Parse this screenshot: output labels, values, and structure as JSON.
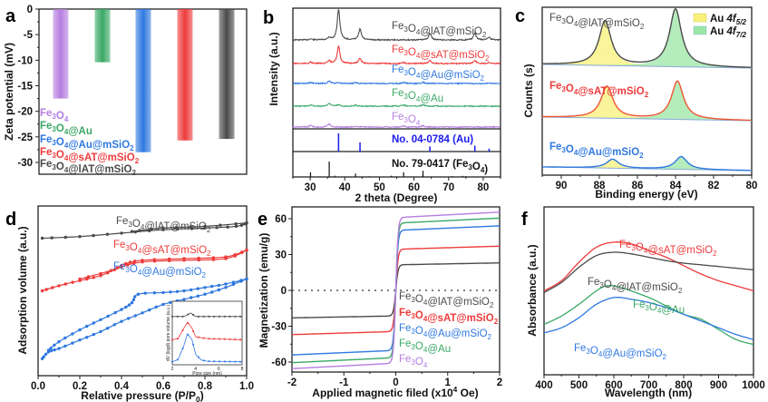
{
  "figure": {
    "panels": [
      "a",
      "b",
      "c",
      "d",
      "e",
      "f"
    ]
  },
  "colors": {
    "Fe3O4": "#b57ee0",
    "Fe3O4@Au": "#3aa866",
    "Fe3O4@Au@mSiO2": "#2f78e0",
    "Fe3O4@sAT@mSiO2": "#ee3b3b",
    "Fe3O4@lAT@mSiO2": "#4a4a4a",
    "au_ref": "#1a1aee",
    "fe_ref": "#111111",
    "au_4f52_fill": "#f8f07a",
    "au_4f72_fill": "#9be6a4"
  },
  "chart_data": [
    {
      "panel": "a",
      "type": "bar",
      "title": "",
      "xlabel": "",
      "ylabel": "Zeta potential (mV)",
      "ylim": [
        -32.5,
        0
      ],
      "yticks": [
        0,
        -5,
        -10,
        -15,
        -20,
        -25,
        -30
      ],
      "categories": [
        "Fe3O4",
        "Fe3O4@Au",
        "Fe3O4@Au@mSiO2",
        "Fe3O4@sAT@mSiO2",
        "Fe3O4@lAT@mSiO2"
      ],
      "values": [
        -17.5,
        -10.4,
        -28.0,
        -25.7,
        -25.4
      ],
      "legend": [
        "Fe₃O₄",
        "Fe₃O₄@Au",
        "Fe₃O₄@Au@mSiO₂",
        "Fe₃O₄@sAT@mSiO₂",
        "Fe₃O₄@lAT@mSiO₂"
      ],
      "legend_position": "bottom-left"
    },
    {
      "panel": "b",
      "type": "line",
      "xlabel": "2 theta (Degree)",
      "ylabel": "Intensity (a.u.)",
      "xlim": [
        25,
        85
      ],
      "xticks": [
        30,
        40,
        50,
        60,
        70,
        80
      ],
      "series": [
        {
          "name": "Fe₃O₄@lAT@mSiO₂",
          "peaks": [
            [
              30.1,
              0.03
            ],
            [
              35.5,
              0.08
            ],
            [
              38.2,
              1.0
            ],
            [
              44.4,
              0.35
            ],
            [
              64.6,
              0.22
            ],
            [
              77.6,
              0.22
            ],
            [
              81.7,
              0.09
            ]
          ]
        },
        {
          "name": "Fe₃O₄@sAT@mSiO₂",
          "peaks": [
            [
              30.1,
              0.06
            ],
            [
              35.5,
              0.12
            ],
            [
              38.2,
              0.8
            ],
            [
              44.4,
              0.25
            ],
            [
              57.0,
              0.04
            ],
            [
              64.6,
              0.14
            ],
            [
              77.6,
              0.14
            ],
            [
              81.7,
              0.06
            ]
          ]
        },
        {
          "name": "Fe₃O₄@Au@mSiO₂",
          "peaks": [
            [
              30.1,
              0.08
            ],
            [
              35.5,
              0.2
            ],
            [
              38.2,
              0.06
            ],
            [
              43.1,
              0.06
            ],
            [
              57.0,
              0.08
            ],
            [
              62.6,
              0.1
            ]
          ]
        },
        {
          "name": "Fe₃O₄@Au",
          "peaks": [
            [
              30.1,
              0.1
            ],
            [
              35.5,
              0.22
            ],
            [
              38.2,
              0.1
            ],
            [
              43.1,
              0.07
            ],
            [
              57.0,
              0.1
            ],
            [
              62.6,
              0.12
            ]
          ]
        },
        {
          "name": "Fe₃O₄",
          "peaks": [
            [
              30.1,
              0.1
            ],
            [
              35.5,
              0.22
            ],
            [
              43.1,
              0.07
            ],
            [
              57.0,
              0.08
            ],
            [
              62.6,
              0.1
            ]
          ]
        }
      ],
      "references": [
        {
          "name": "No. 04-0784 (Au)",
          "lines": [
            [
              38.2,
              1.0
            ],
            [
              44.4,
              0.5
            ],
            [
              64.6,
              0.28
            ],
            [
              77.6,
              0.32
            ],
            [
              81.7,
              0.16
            ]
          ]
        },
        {
          "name": "No. 79-0417 (Fe₃O₄)",
          "lines": [
            [
              30.1,
              0.3
            ],
            [
              35.5,
              1.0
            ],
            [
              37.1,
              0.08
            ],
            [
              43.1,
              0.22
            ],
            [
              47.1,
              0.04
            ],
            [
              53.5,
              0.08
            ],
            [
              57.0,
              0.3
            ],
            [
              62.6,
              0.4
            ],
            [
              65.8,
              0.03
            ],
            [
              71.0,
              0.05
            ],
            [
              74.0,
              0.07
            ],
            [
              75.0,
              0.05
            ]
          ]
        }
      ]
    },
    {
      "panel": "c",
      "type": "line",
      "xlabel": "Binding energy (eV)",
      "ylabel": "Counts (s)",
      "xlim": [
        91,
        80
      ],
      "xticks": [
        90,
        88,
        86,
        84,
        82,
        80
      ],
      "legend": [
        "Au 4f5/2",
        "Au 4f7/2"
      ],
      "legend_position": "top-right",
      "series": [
        {
          "name": "Fe₃O₄@lAT@mSiO₂",
          "peak_4f52": 87.7,
          "peak_4f72": 84.0,
          "height_4f52": 0.68,
          "height_4f72": 0.88
        },
        {
          "name": "Fe₃O₄@sAT@mSiO₂",
          "peak_4f52": 87.6,
          "peak_4f72": 83.9,
          "height_4f52": 0.5,
          "height_4f72": 0.6
        },
        {
          "name": "Fe₃O₄@Au@mSiO₂",
          "peak_4f52": 87.3,
          "peak_4f72": 83.7,
          "height_4f52": 0.14,
          "height_4f72": 0.2
        }
      ]
    },
    {
      "panel": "d",
      "type": "line",
      "xlabel": "Relative pressure (P/P₀)",
      "ylabel": "Adsorption volume (a.u.)",
      "xlim": [
        0.0,
        1.0
      ],
      "xticks": [
        "0.0",
        "0.2",
        "0.4",
        "0.6",
        "0.8",
        "1.0"
      ],
      "series": [
        {
          "name": "Fe₃O₄@lAT@mSiO₂",
          "adsorption": [
            [
              0.02,
              0.81
            ],
            [
              0.2,
              0.82
            ],
            [
              0.4,
              0.84
            ],
            [
              0.6,
              0.86
            ],
            [
              0.8,
              0.87
            ],
            [
              0.95,
              0.88
            ],
            [
              1.0,
              0.9
            ]
          ],
          "desorption": [
            [
              1.0,
              0.9
            ],
            [
              0.8,
              0.88
            ],
            [
              0.6,
              0.87
            ],
            [
              0.45,
              0.85
            ]
          ]
        },
        {
          "name": "Fe₃O₄@sAT@mSiO₂",
          "adsorption": [
            [
              0.02,
              0.5
            ],
            [
              0.1,
              0.53
            ],
            [
              0.2,
              0.56
            ],
            [
              0.3,
              0.59
            ],
            [
              0.4,
              0.64
            ],
            [
              0.5,
              0.67
            ],
            [
              0.7,
              0.68
            ],
            [
              0.9,
              0.69
            ],
            [
              1.0,
              0.74
            ]
          ],
          "desorption": [
            [
              1.0,
              0.74
            ],
            [
              0.9,
              0.7
            ],
            [
              0.7,
              0.69
            ],
            [
              0.5,
              0.68
            ],
            [
              0.42,
              0.66
            ],
            [
              0.35,
              0.62
            ],
            [
              0.2,
              0.57
            ]
          ]
        },
        {
          "name": "Fe₃O₄@Au@mSiO₂",
          "adsorption": [
            [
              0.02,
              0.1
            ],
            [
              0.05,
              0.14
            ],
            [
              0.1,
              0.16
            ],
            [
              0.2,
              0.21
            ],
            [
              0.3,
              0.26
            ],
            [
              0.4,
              0.32
            ],
            [
              0.5,
              0.37
            ],
            [
              0.6,
              0.42
            ],
            [
              0.7,
              0.45
            ],
            [
              0.8,
              0.48
            ],
            [
              0.9,
              0.52
            ],
            [
              1.0,
              0.57
            ]
          ],
          "desorption": [
            [
              1.0,
              0.57
            ],
            [
              0.9,
              0.54
            ],
            [
              0.8,
              0.52
            ],
            [
              0.7,
              0.5
            ],
            [
              0.6,
              0.49
            ],
            [
              0.48,
              0.48
            ],
            [
              0.45,
              0.43
            ],
            [
              0.4,
              0.39
            ],
            [
              0.3,
              0.33
            ],
            [
              0.2,
              0.27
            ],
            [
              0.1,
              0.2
            ],
            [
              0.05,
              0.15
            ]
          ]
        }
      ],
      "inset": {
        "xlabel": "Pore size (nm)",
        "ylabel": "dV (logd) pore volume (a.u.)",
        "xlim": [
          2,
          8
        ],
        "xticks": [
          "2",
          "4",
          "6",
          "8"
        ],
        "series": [
          {
            "name": "Fe₃O₄@lAT@mSiO₂",
            "points": [
              [
                2.0,
                0.8
              ],
              [
                3.0,
                0.8
              ],
              [
                3.6,
                0.86
              ],
              [
                4.0,
                0.8
              ],
              [
                8.0,
                0.8
              ]
            ]
          },
          {
            "name": "Fe₃O₄@sAT@mSiO₂",
            "points": [
              [
                2.0,
                0.4
              ],
              [
                2.5,
                0.42
              ],
              [
                3.0,
                0.6
              ],
              [
                3.3,
                0.7
              ],
              [
                3.7,
                0.6
              ],
              [
                4.0,
                0.45
              ],
              [
                5.0,
                0.42
              ],
              [
                8.0,
                0.4
              ]
            ]
          },
          {
            "name": "Fe₃O₄@Au@mSiO₂",
            "points": [
              [
                2.0,
                0.02
              ],
              [
                2.5,
                0.06
              ],
              [
                3.0,
                0.3
              ],
              [
                3.3,
                0.5
              ],
              [
                3.7,
                0.4
              ],
              [
                4.0,
                0.15
              ],
              [
                4.5,
                0.05
              ],
              [
                5.0,
                0.03
              ],
              [
                8.0,
                0.02
              ]
            ]
          }
        ]
      }
    },
    {
      "panel": "e",
      "type": "line",
      "xlabel": "Applied magnetic filed (x10⁴ Oe)",
      "ylabel": "Magnetization (emu/g)",
      "xlim": [
        -2,
        2
      ],
      "ylim": [
        -70,
        70
      ],
      "xticks": [
        "-2",
        "-1",
        "0",
        "1",
        "2"
      ],
      "yticks": [
        "60",
        "30",
        "0",
        "-30",
        "-60"
      ],
      "series": [
        {
          "name": "Fe₃O₄@lAT@mSiO₂",
          "saturation_emu_g": 23
        },
        {
          "name": "Fe₃O₄@sAT@mSiO₂",
          "saturation_emu_g": 37
        },
        {
          "name": "Fe₃O₄@Au@mSiO₂",
          "saturation_emu_g": 54
        },
        {
          "name": "Fe₃O₄@Au",
          "saturation_emu_g": 60.5
        },
        {
          "name": "Fe₃O₄",
          "saturation_emu_g": 65.5
        }
      ],
      "zero_line": "dotted"
    },
    {
      "panel": "f",
      "type": "line",
      "xlabel": "Wavelength (nm)",
      "ylabel": "Absorbance (a.u.)",
      "xlim": [
        400,
        1000
      ],
      "xticks": [
        "400",
        "500",
        "600",
        "700",
        "800",
        "900",
        "1000"
      ],
      "series": [
        {
          "name": "Fe₃O₄@sAT@mSiO₂",
          "points": [
            [
              400,
              0.5
            ],
            [
              450,
              0.56
            ],
            [
              500,
              0.67
            ],
            [
              550,
              0.76
            ],
            [
              600,
              0.79
            ],
            [
              650,
              0.78
            ],
            [
              700,
              0.74
            ],
            [
              750,
              0.7
            ],
            [
              800,
              0.65
            ],
            [
              850,
              0.6
            ],
            [
              900,
              0.56
            ],
            [
              950,
              0.53
            ],
            [
              1000,
              0.5
            ]
          ]
        },
        {
          "name": "Fe₃O₄@lAT@mSiO₂",
          "points": [
            [
              400,
              0.49
            ],
            [
              450,
              0.55
            ],
            [
              500,
              0.64
            ],
            [
              550,
              0.71
            ],
            [
              600,
              0.73
            ],
            [
              650,
              0.72
            ],
            [
              700,
              0.7
            ],
            [
              750,
              0.68
            ],
            [
              800,
              0.665
            ],
            [
              850,
              0.655
            ],
            [
              900,
              0.645
            ],
            [
              950,
              0.635
            ],
            [
              1000,
              0.625
            ]
          ]
        },
        {
          "name": "Fe₃O₄@Au",
          "points": [
            [
              400,
              0.3
            ],
            [
              450,
              0.35
            ],
            [
              500,
              0.42
            ],
            [
              550,
              0.5
            ],
            [
              580,
              0.53
            ],
            [
              620,
              0.52
            ],
            [
              700,
              0.46
            ],
            [
              750,
              0.41
            ],
            [
              800,
              0.36
            ],
            [
              850,
              0.33
            ],
            [
              900,
              0.27
            ],
            [
              950,
              0.21
            ],
            [
              1000,
              0.18
            ]
          ]
        },
        {
          "name": "Fe₃O₄@Au@mSiO₂",
          "points": [
            [
              400,
              0.25
            ],
            [
              450,
              0.28
            ],
            [
              500,
              0.34
            ],
            [
              550,
              0.42
            ],
            [
              600,
              0.46
            ],
            [
              650,
              0.45
            ],
            [
              700,
              0.43
            ],
            [
              750,
              0.4
            ],
            [
              800,
              0.36
            ],
            [
              850,
              0.32
            ],
            [
              900,
              0.28
            ],
            [
              950,
              0.24
            ],
            [
              1000,
              0.21
            ]
          ]
        }
      ]
    }
  ]
}
